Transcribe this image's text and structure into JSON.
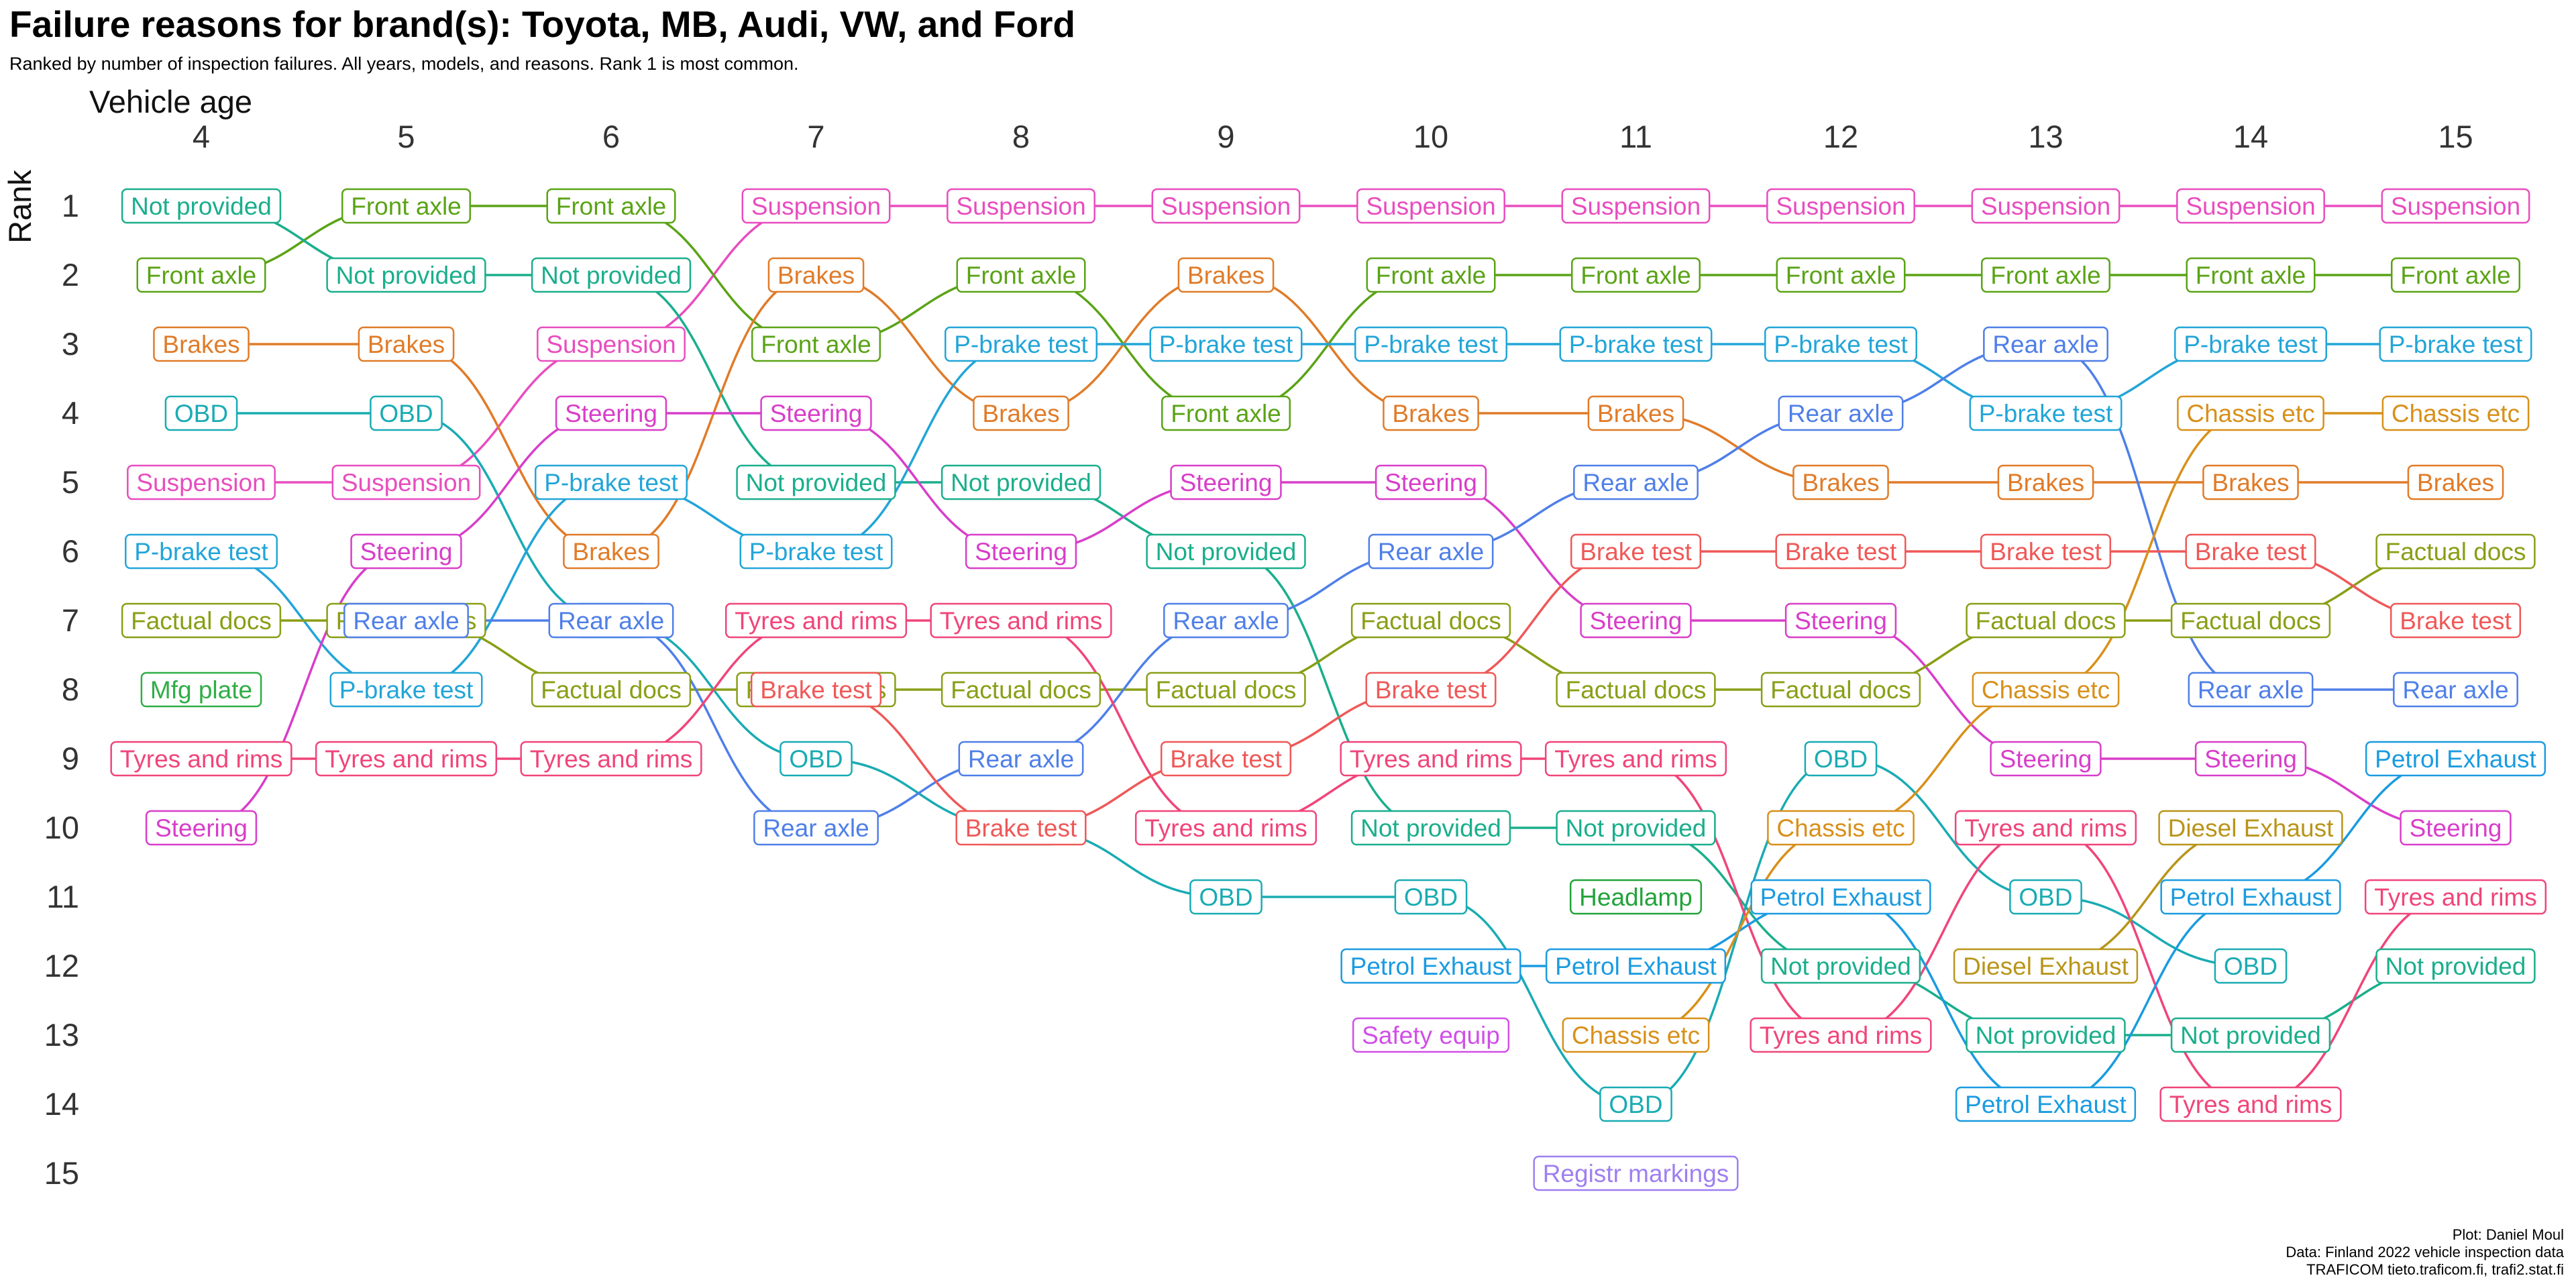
{
  "chart_data": {
    "type": "bump",
    "title": "Failure reasons for brand(s): Toyota, MB, Audi, VW, and Ford",
    "subtitle": "Ranked by number of inspection failures. All years, models, and reasons. Rank 1 is most common.",
    "xlabel": "Vehicle age",
    "ylabel": "Rank",
    "x_ticks": [
      4,
      5,
      6,
      7,
      8,
      9,
      10,
      11,
      12,
      13,
      14,
      15
    ],
    "y_ticks": [
      1,
      2,
      3,
      4,
      5,
      6,
      7,
      8,
      9,
      10,
      11,
      12,
      13,
      14,
      15
    ],
    "x_axis_position": "top",
    "y_reversed": true,
    "grid": false,
    "legend": "none",
    "caption": [
      "Plot: Daniel Moul",
      "Data: Finland 2022 vehicle inspection data",
      "TRAFICOM tieto.traficom.fi, trafi2.stat.fi"
    ],
    "series": [
      {
        "name": "Suspension",
        "color": "#E84DBF",
        "x": [
          4,
          5,
          6,
          7,
          8,
          9,
          10,
          11,
          12,
          13,
          14,
          15
        ],
        "ranks": [
          5,
          5,
          3,
          1,
          1,
          1,
          1,
          1,
          1,
          1,
          1,
          1
        ]
      },
      {
        "name": "Front axle",
        "color": "#5AA316",
        "x": [
          4,
          5,
          6,
          7,
          8,
          9,
          10,
          11,
          12,
          13,
          14,
          15
        ],
        "ranks": [
          2,
          1,
          1,
          3,
          2,
          4,
          2,
          2,
          2,
          2,
          2,
          2
        ]
      },
      {
        "name": "Not provided",
        "color": "#1AAE8C",
        "x": [
          4,
          5,
          6,
          7,
          8,
          9,
          10,
          11,
          12,
          13,
          14,
          15
        ],
        "ranks": [
          1,
          2,
          2,
          5,
          5,
          6,
          10,
          10,
          12,
          13,
          13,
          12
        ]
      },
      {
        "name": "Brakes",
        "color": "#E07B28",
        "x": [
          4,
          5,
          6,
          7,
          8,
          9,
          10,
          11,
          12,
          13,
          14,
          15
        ],
        "ranks": [
          3,
          3,
          6,
          2,
          4,
          2,
          4,
          4,
          5,
          5,
          5,
          5
        ]
      },
      {
        "name": "OBD",
        "color": "#1AABB3",
        "x": [
          4,
          5,
          6,
          7,
          8,
          9,
          10,
          11,
          12,
          13,
          14
        ],
        "ranks": [
          4,
          4,
          7,
          9,
          10,
          11,
          11,
          14,
          9,
          11,
          12
        ]
      },
      {
        "name": "P-brake test",
        "color": "#22A5D8",
        "x": [
          4,
          5,
          6,
          7,
          8,
          9,
          10,
          11,
          12,
          13,
          14,
          15
        ],
        "ranks": [
          6,
          8,
          5,
          6,
          3,
          3,
          3,
          3,
          3,
          4,
          3,
          3
        ]
      },
      {
        "name": "Steering",
        "color": "#D83EC9",
        "x": [
          4,
          5,
          6,
          7,
          8,
          9,
          10,
          11,
          12,
          13,
          14,
          15
        ],
        "ranks": [
          10,
          6,
          4,
          4,
          6,
          5,
          5,
          7,
          7,
          9,
          9,
          10
        ]
      },
      {
        "name": "Factual docs",
        "color": "#8A9E16",
        "x": [
          4,
          5,
          6,
          7,
          8,
          9,
          10,
          11,
          12,
          13,
          14,
          15
        ],
        "ranks": [
          7,
          7,
          8,
          8,
          8,
          8,
          7,
          8,
          8,
          7,
          7,
          6
        ]
      },
      {
        "name": "Rear axle",
        "color": "#4F7FE8",
        "x": [
          5,
          6,
          7,
          8,
          9,
          10,
          11,
          12,
          13,
          14,
          15
        ],
        "ranks": [
          7,
          7,
          10,
          9,
          7,
          6,
          5,
          4,
          3,
          8,
          8
        ]
      },
      {
        "name": "Tyres and rims",
        "color": "#F0457A",
        "x": [
          4,
          5,
          6,
          7,
          8,
          9,
          10,
          11,
          12,
          13,
          14,
          15
        ],
        "ranks": [
          9,
          9,
          9,
          7,
          7,
          10,
          9,
          9,
          13,
          10,
          14,
          11
        ]
      },
      {
        "name": "Brake test",
        "color": "#EF5858",
        "x": [
          7,
          8,
          9,
          10,
          11,
          12,
          13,
          14,
          15
        ],
        "ranks": [
          8,
          10,
          9,
          8,
          6,
          6,
          6,
          6,
          7
        ]
      },
      {
        "name": "Petrol Exhaust",
        "color": "#1A9BE0",
        "x": [
          10,
          11,
          12,
          13,
          14,
          15
        ],
        "ranks": [
          12,
          12,
          11,
          14,
          11,
          9
        ]
      },
      {
        "name": "Chassis etc",
        "color": "#D8901A",
        "x": [
          11,
          12,
          13,
          14,
          15
        ],
        "ranks": [
          13,
          10,
          8,
          4,
          4
        ]
      },
      {
        "name": "Diesel Exhaust",
        "color": "#B8951A",
        "x": [
          13,
          14
        ],
        "ranks": [
          12,
          10
        ]
      },
      {
        "name": "Mfg plate",
        "color": "#2EAE46",
        "x": [
          4
        ],
        "ranks": [
          8
        ]
      },
      {
        "name": "Safety equip",
        "color": "#D14EE8",
        "x": [
          10
        ],
        "ranks": [
          13
        ]
      },
      {
        "name": "Headlamp",
        "color": "#22A33A",
        "x": [
          11
        ],
        "ranks": [
          11
        ]
      },
      {
        "name": "Registr markings",
        "color": "#9E7FF0",
        "x": [
          11
        ],
        "ranks": [
          15
        ]
      }
    ]
  }
}
